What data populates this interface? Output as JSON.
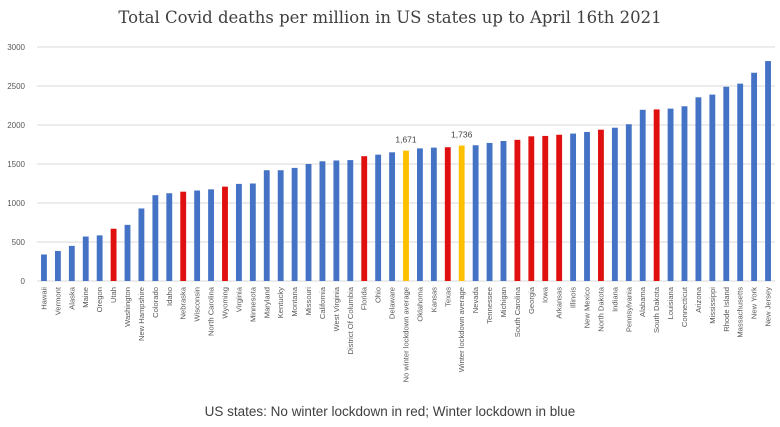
{
  "chart_data": {
    "type": "bar",
    "title": "Total Covid deaths per million in US states up to April 16th 2021",
    "caption": "US states: No winter lockdown in red; Winter lockdown in blue",
    "xlabel": "",
    "ylabel": "",
    "ylim": [
      0,
      3000
    ],
    "yticks": [
      "0",
      "500",
      "1000",
      "1500",
      "2000",
      "2500",
      "3000"
    ],
    "grid": true,
    "colors": {
      "blue": "#4472c4",
      "red": "#e01010",
      "gold": "#ffc000",
      "grid": "#d9d9d9",
      "axis_text": "#595959"
    },
    "categories": [
      "Hawaii",
      "Vermont",
      "Alaska",
      "Maine",
      "Oregon",
      "Utah",
      "Washington",
      "New Hampshire",
      "Colorado",
      "Idaho",
      "Nebraska",
      "Wisconsin",
      "North Carolina",
      "Wyoming",
      "Virginia",
      "Minnesota",
      "Maryland",
      "Kentucky",
      "Montana",
      "Missouri",
      "California",
      "West Virginia",
      "District Of Columbia",
      "Florida",
      "Ohio",
      "Delaware",
      "No winter lockdown average",
      "Oklahoma",
      "Kansas",
      "Texas",
      "Winter lockdown average",
      "Nevada",
      "Tennessee",
      "Michigan",
      "South Carolina",
      "Georgia",
      "Iowa",
      "Arkansas",
      "Illinois",
      "New Mexico",
      "North Dakota",
      "Indiana",
      "Pennsylvania",
      "Alabama",
      "South Dakota",
      "Louisiana",
      "Connecticut",
      "Arizona",
      "Mississippi",
      "Rhode Island",
      "Massachusetts",
      "New York",
      "New Jersey"
    ],
    "values": [
      340,
      385,
      450,
      570,
      585,
      670,
      720,
      930,
      1100,
      1125,
      1145,
      1160,
      1175,
      1210,
      1245,
      1250,
      1420,
      1420,
      1450,
      1500,
      1535,
      1545,
      1550,
      1600,
      1620,
      1650,
      1671,
      1700,
      1710,
      1715,
      1736,
      1740,
      1770,
      1795,
      1810,
      1855,
      1860,
      1875,
      1890,
      1910,
      1940,
      1965,
      2010,
      2195,
      2200,
      2210,
      2240,
      2355,
      2390,
      2490,
      2530,
      2670,
      2820
    ],
    "bar_colors": [
      "blue",
      "blue",
      "blue",
      "blue",
      "blue",
      "red",
      "blue",
      "blue",
      "blue",
      "blue",
      "red",
      "blue",
      "blue",
      "red",
      "blue",
      "blue",
      "blue",
      "blue",
      "blue",
      "blue",
      "blue",
      "blue",
      "blue",
      "red",
      "blue",
      "blue",
      "gold",
      "blue",
      "blue",
      "red",
      "gold",
      "blue",
      "blue",
      "blue",
      "red",
      "red",
      "red",
      "red",
      "blue",
      "blue",
      "red",
      "blue",
      "blue",
      "blue",
      "red",
      "blue",
      "blue",
      "blue",
      "blue",
      "blue",
      "blue",
      "blue",
      "blue"
    ],
    "data_labels": [
      {
        "index": 26,
        "text": "1,671"
      },
      {
        "index": 30,
        "text": "1,736"
      }
    ]
  }
}
